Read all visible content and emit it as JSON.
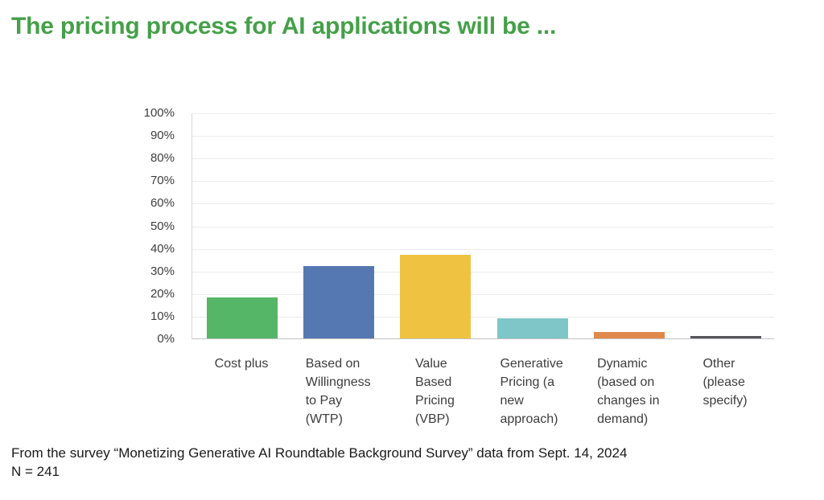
{
  "title": "The pricing process for AI applications will be ...",
  "footer": {
    "line1": "From the survey “Monetizing Generative AI Roundtable Background Survey” data from Sept. 14, 2024",
    "line2": "N = 241"
  },
  "colors": {
    "title_green": "#45a049",
    "axis_text": "#3d3d3d",
    "footer_text": "#1a1a1a",
    "gridline": "#ececec",
    "axis_line_left": "#d9d9d9",
    "axis_line_bottom": "#c3c3c3"
  },
  "chart_data": {
    "type": "bar",
    "title": "The pricing process for AI applications will be ...",
    "xlabel": "",
    "ylabel": "",
    "ylim": [
      0,
      100
    ],
    "grid": true,
    "legend": "none",
    "y_ticks": [
      "0%",
      "10%",
      "20%",
      "30%",
      "40%",
      "50%",
      "60%",
      "70%",
      "80%",
      "90%",
      "100%"
    ],
    "categories": [
      "Cost plus",
      "Based on Willingness to Pay (WTP)",
      "Value Based Pricing (VBP)",
      "Generative Pricing (a new approach)",
      "Dynamic (based on changes in demand)",
      "Other (please specify)"
    ],
    "series": [
      {
        "label": "Cost plus",
        "label_wrapped": "Cost plus",
        "value": 18,
        "color": "#56b667"
      },
      {
        "label": "Based on Willingness to Pay (WTP)",
        "label_wrapped": "Based on\nWillingness\nto Pay\n(WTP)",
        "value": 32,
        "color": "#5578b2"
      },
      {
        "label": "Value Based Pricing (VBP)",
        "label_wrapped": "Value\nBased\nPricing\n(VBP)",
        "value": 37,
        "color": "#efc241"
      },
      {
        "label": "Generative Pricing (a new approach)",
        "label_wrapped": "Generative\nPricing (a\nnew\napproach)",
        "value": 9,
        "color": "#7ec6c7"
      },
      {
        "label": "Dynamic (based on changes in demand)",
        "label_wrapped": "Dynamic\n(based on\nchanges in\ndemand)",
        "value": 3,
        "color": "#e0894b"
      },
      {
        "label": "Other (please specify)",
        "label_wrapped": "Other\n(please\nspecify)",
        "value": 1,
        "color": "#54565a"
      }
    ]
  }
}
